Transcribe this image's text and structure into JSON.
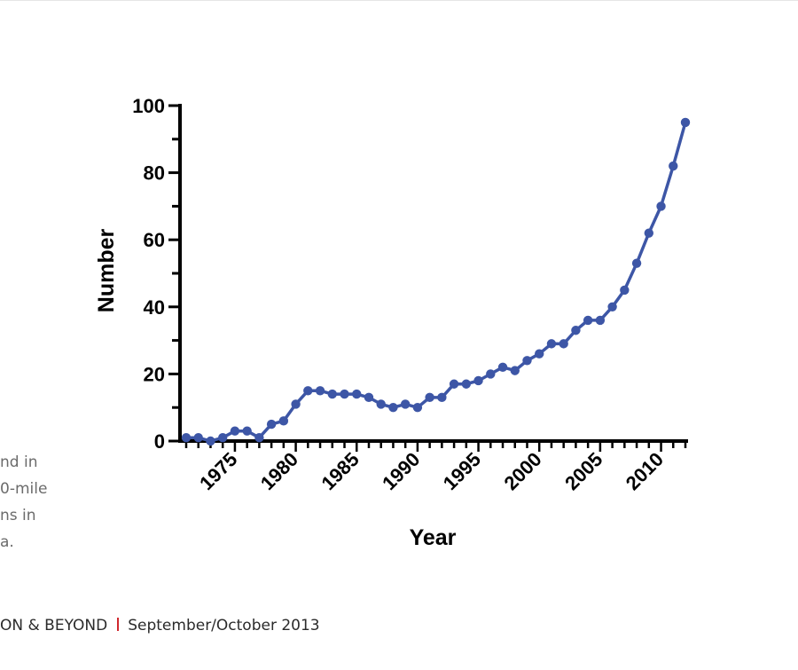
{
  "caption_lines": [
    "nd in",
    "0-mile",
    "ns in",
    "a."
  ],
  "footer": {
    "publication": "ON & BEYOND",
    "issue": "September/October 2013",
    "separator_color": "#d0282e"
  },
  "chart_data": {
    "type": "line",
    "xlabel": "Year",
    "ylabel": "Number",
    "xlim": [
      1971,
      2012
    ],
    "ylim": [
      0,
      100
    ],
    "x_ticks": [
      1975,
      1980,
      1985,
      1990,
      1995,
      2000,
      2005,
      2010
    ],
    "y_ticks": [
      0,
      20,
      40,
      60,
      80,
      100
    ],
    "grid": false,
    "color": "#3d56a6",
    "x": [
      1971,
      1972,
      1973,
      1974,
      1975,
      1976,
      1977,
      1978,
      1979,
      1980,
      1981,
      1982,
      1983,
      1984,
      1985,
      1986,
      1987,
      1988,
      1989,
      1990,
      1991,
      1992,
      1993,
      1994,
      1995,
      1996,
      1997,
      1998,
      1999,
      2000,
      2001,
      2002,
      2003,
      2004,
      2005,
      2006,
      2007,
      2008,
      2009,
      2010,
      2011,
      2012
    ],
    "values": [
      1,
      1,
      0,
      1,
      3,
      3,
      1,
      5,
      6,
      11,
      15,
      15,
      14,
      14,
      14,
      13,
      11,
      10,
      11,
      10,
      13,
      13,
      17,
      17,
      18,
      20,
      22,
      21,
      24,
      26,
      29,
      29,
      33,
      36,
      36,
      40,
      45,
      53,
      62,
      70,
      82,
      95
    ]
  }
}
